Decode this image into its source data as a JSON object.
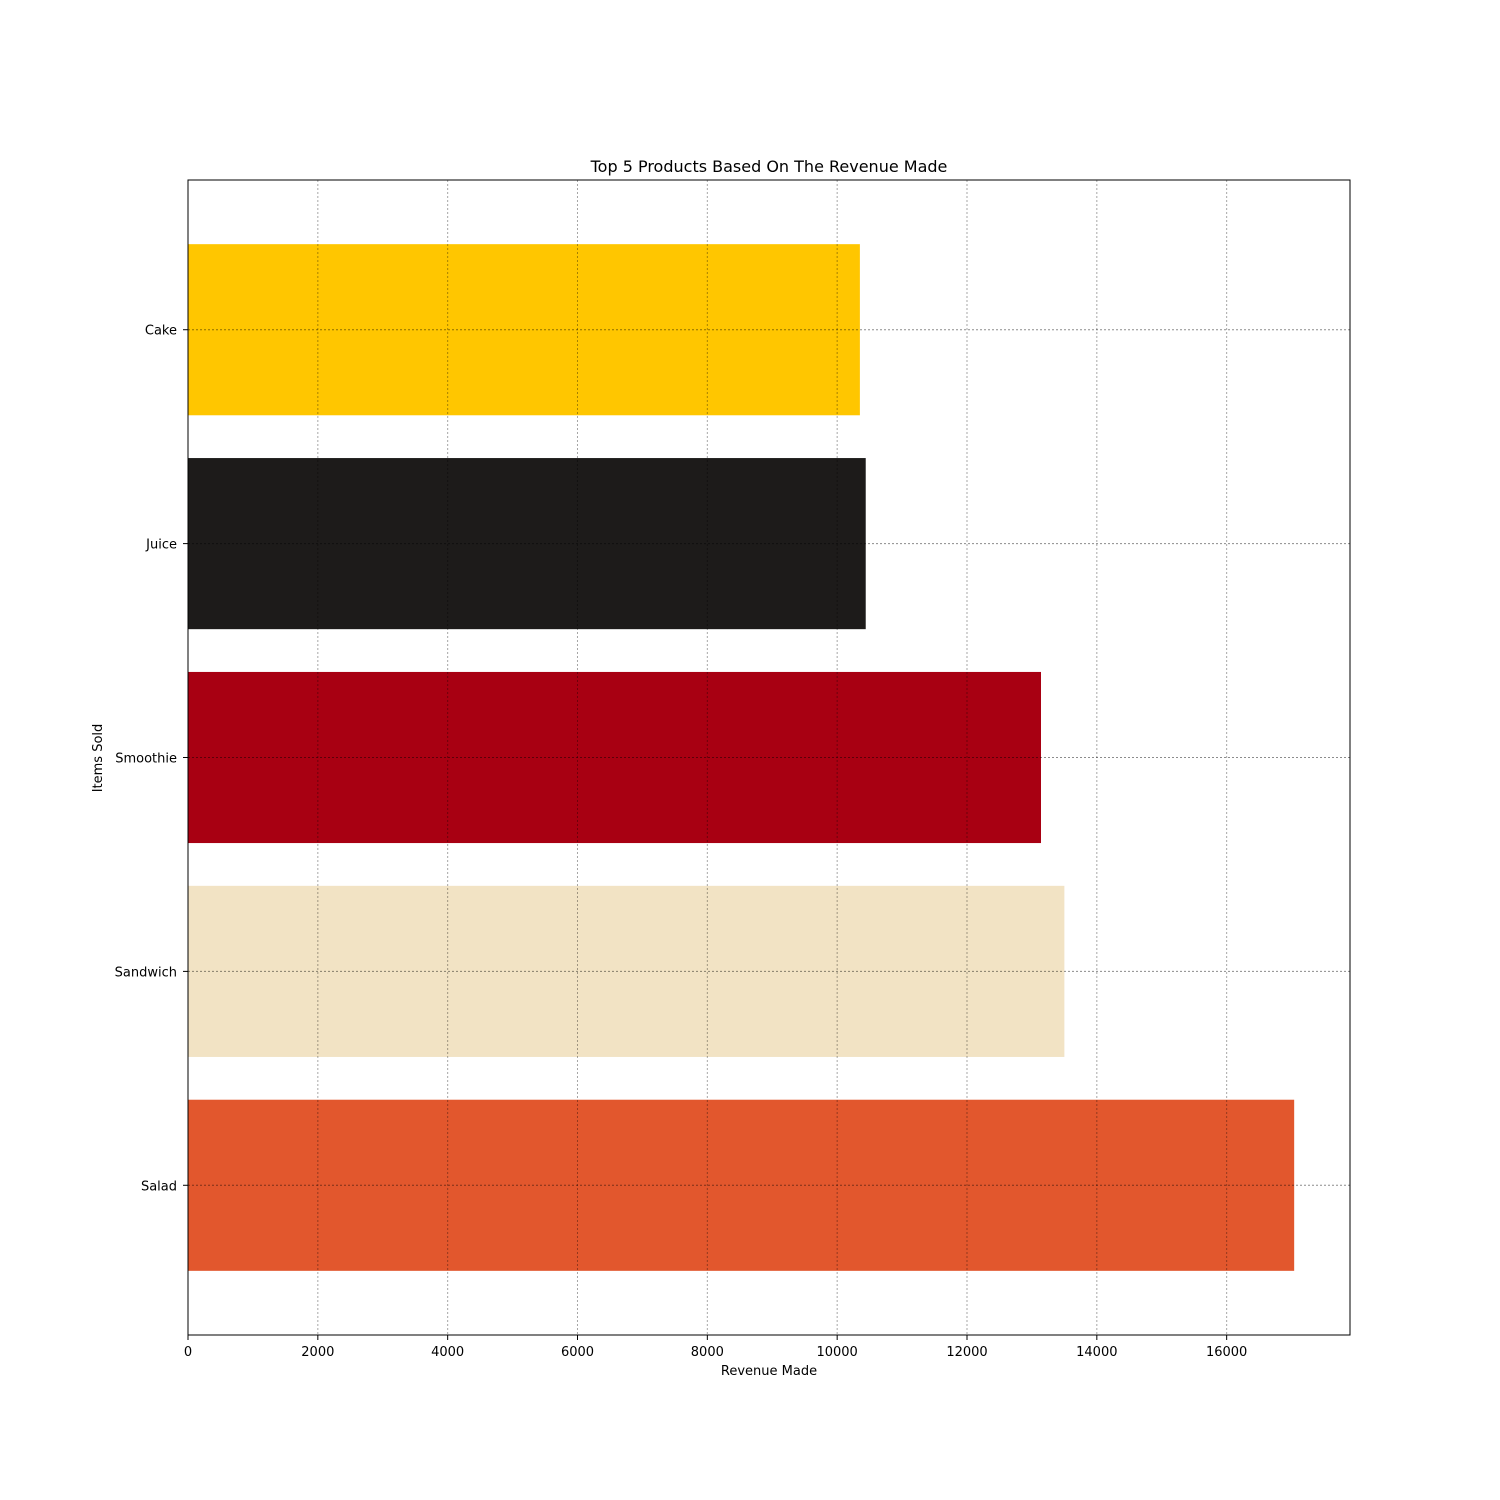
{
  "chart_data": {
    "type": "bar",
    "orientation": "horizontal",
    "title": "Top 5 Products Based On The Revenue Made",
    "xlabel": "Revenue Made",
    "ylabel": "Items Sold",
    "categories": [
      "Salad",
      "Sandwich",
      "Smoothie",
      "Juice",
      "Cake"
    ],
    "values": [
      17040,
      13500,
      13140,
      10440,
      10350
    ],
    "colors": [
      "#e2572d",
      "#f2e3c4",
      "#a80012",
      "#1d1b1a",
      "#ffc600"
    ],
    "xlim": [
      0,
      17900
    ],
    "xticks": [
      0,
      2000,
      4000,
      6000,
      8000,
      10000,
      12000,
      14000,
      16000
    ],
    "xtick_labels": [
      "0",
      "2000",
      "4000",
      "6000",
      "8000",
      "10000",
      "12000",
      "14000",
      "16000"
    ],
    "grid": true
  }
}
